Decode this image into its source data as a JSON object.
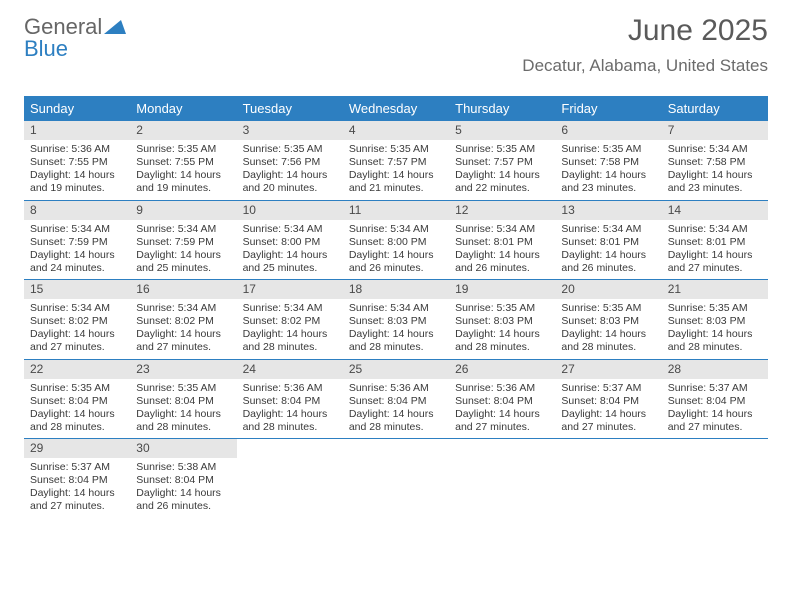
{
  "logo": {
    "text1": "General",
    "text2": "Blue"
  },
  "title": "June 2025",
  "subtitle": "Decatur, Alabama, United States",
  "colors": {
    "header_bg": "#2d7fc1",
    "header_text": "#ffffff",
    "daynum_bg": "#e6e6e6",
    "week_border": "#2d7fc1",
    "body_text": "#3a3a3a",
    "title_text": "#5a5a5a"
  },
  "day_labels": [
    "Sunday",
    "Monday",
    "Tuesday",
    "Wednesday",
    "Thursday",
    "Friday",
    "Saturday"
  ],
  "weeks": [
    [
      {
        "n": "1",
        "sr": "Sunrise: 5:36 AM",
        "ss": "Sunset: 7:55 PM",
        "d1": "Daylight: 14 hours",
        "d2": "and 19 minutes."
      },
      {
        "n": "2",
        "sr": "Sunrise: 5:35 AM",
        "ss": "Sunset: 7:55 PM",
        "d1": "Daylight: 14 hours",
        "d2": "and 19 minutes."
      },
      {
        "n": "3",
        "sr": "Sunrise: 5:35 AM",
        "ss": "Sunset: 7:56 PM",
        "d1": "Daylight: 14 hours",
        "d2": "and 20 minutes."
      },
      {
        "n": "4",
        "sr": "Sunrise: 5:35 AM",
        "ss": "Sunset: 7:57 PM",
        "d1": "Daylight: 14 hours",
        "d2": "and 21 minutes."
      },
      {
        "n": "5",
        "sr": "Sunrise: 5:35 AM",
        "ss": "Sunset: 7:57 PM",
        "d1": "Daylight: 14 hours",
        "d2": "and 22 minutes."
      },
      {
        "n": "6",
        "sr": "Sunrise: 5:35 AM",
        "ss": "Sunset: 7:58 PM",
        "d1": "Daylight: 14 hours",
        "d2": "and 23 minutes."
      },
      {
        "n": "7",
        "sr": "Sunrise: 5:34 AM",
        "ss": "Sunset: 7:58 PM",
        "d1": "Daylight: 14 hours",
        "d2": "and 23 minutes."
      }
    ],
    [
      {
        "n": "8",
        "sr": "Sunrise: 5:34 AM",
        "ss": "Sunset: 7:59 PM",
        "d1": "Daylight: 14 hours",
        "d2": "and 24 minutes."
      },
      {
        "n": "9",
        "sr": "Sunrise: 5:34 AM",
        "ss": "Sunset: 7:59 PM",
        "d1": "Daylight: 14 hours",
        "d2": "and 25 minutes."
      },
      {
        "n": "10",
        "sr": "Sunrise: 5:34 AM",
        "ss": "Sunset: 8:00 PM",
        "d1": "Daylight: 14 hours",
        "d2": "and 25 minutes."
      },
      {
        "n": "11",
        "sr": "Sunrise: 5:34 AM",
        "ss": "Sunset: 8:00 PM",
        "d1": "Daylight: 14 hours",
        "d2": "and 26 minutes."
      },
      {
        "n": "12",
        "sr": "Sunrise: 5:34 AM",
        "ss": "Sunset: 8:01 PM",
        "d1": "Daylight: 14 hours",
        "d2": "and 26 minutes."
      },
      {
        "n": "13",
        "sr": "Sunrise: 5:34 AM",
        "ss": "Sunset: 8:01 PM",
        "d1": "Daylight: 14 hours",
        "d2": "and 26 minutes."
      },
      {
        "n": "14",
        "sr": "Sunrise: 5:34 AM",
        "ss": "Sunset: 8:01 PM",
        "d1": "Daylight: 14 hours",
        "d2": "and 27 minutes."
      }
    ],
    [
      {
        "n": "15",
        "sr": "Sunrise: 5:34 AM",
        "ss": "Sunset: 8:02 PM",
        "d1": "Daylight: 14 hours",
        "d2": "and 27 minutes."
      },
      {
        "n": "16",
        "sr": "Sunrise: 5:34 AM",
        "ss": "Sunset: 8:02 PM",
        "d1": "Daylight: 14 hours",
        "d2": "and 27 minutes."
      },
      {
        "n": "17",
        "sr": "Sunrise: 5:34 AM",
        "ss": "Sunset: 8:02 PM",
        "d1": "Daylight: 14 hours",
        "d2": "and 28 minutes."
      },
      {
        "n": "18",
        "sr": "Sunrise: 5:34 AM",
        "ss": "Sunset: 8:03 PM",
        "d1": "Daylight: 14 hours",
        "d2": "and 28 minutes."
      },
      {
        "n": "19",
        "sr": "Sunrise: 5:35 AM",
        "ss": "Sunset: 8:03 PM",
        "d1": "Daylight: 14 hours",
        "d2": "and 28 minutes."
      },
      {
        "n": "20",
        "sr": "Sunrise: 5:35 AM",
        "ss": "Sunset: 8:03 PM",
        "d1": "Daylight: 14 hours",
        "d2": "and 28 minutes."
      },
      {
        "n": "21",
        "sr": "Sunrise: 5:35 AM",
        "ss": "Sunset: 8:03 PM",
        "d1": "Daylight: 14 hours",
        "d2": "and 28 minutes."
      }
    ],
    [
      {
        "n": "22",
        "sr": "Sunrise: 5:35 AM",
        "ss": "Sunset: 8:04 PM",
        "d1": "Daylight: 14 hours",
        "d2": "and 28 minutes."
      },
      {
        "n": "23",
        "sr": "Sunrise: 5:35 AM",
        "ss": "Sunset: 8:04 PM",
        "d1": "Daylight: 14 hours",
        "d2": "and 28 minutes."
      },
      {
        "n": "24",
        "sr": "Sunrise: 5:36 AM",
        "ss": "Sunset: 8:04 PM",
        "d1": "Daylight: 14 hours",
        "d2": "and 28 minutes."
      },
      {
        "n": "25",
        "sr": "Sunrise: 5:36 AM",
        "ss": "Sunset: 8:04 PM",
        "d1": "Daylight: 14 hours",
        "d2": "and 28 minutes."
      },
      {
        "n": "26",
        "sr": "Sunrise: 5:36 AM",
        "ss": "Sunset: 8:04 PM",
        "d1": "Daylight: 14 hours",
        "d2": "and 27 minutes."
      },
      {
        "n": "27",
        "sr": "Sunrise: 5:37 AM",
        "ss": "Sunset: 8:04 PM",
        "d1": "Daylight: 14 hours",
        "d2": "and 27 minutes."
      },
      {
        "n": "28",
        "sr": "Sunrise: 5:37 AM",
        "ss": "Sunset: 8:04 PM",
        "d1": "Daylight: 14 hours",
        "d2": "and 27 minutes."
      }
    ],
    [
      {
        "n": "29",
        "sr": "Sunrise: 5:37 AM",
        "ss": "Sunset: 8:04 PM",
        "d1": "Daylight: 14 hours",
        "d2": "and 27 minutes."
      },
      {
        "n": "30",
        "sr": "Sunrise: 5:38 AM",
        "ss": "Sunset: 8:04 PM",
        "d1": "Daylight: 14 hours",
        "d2": "and 26 minutes."
      },
      null,
      null,
      null,
      null,
      null
    ]
  ]
}
